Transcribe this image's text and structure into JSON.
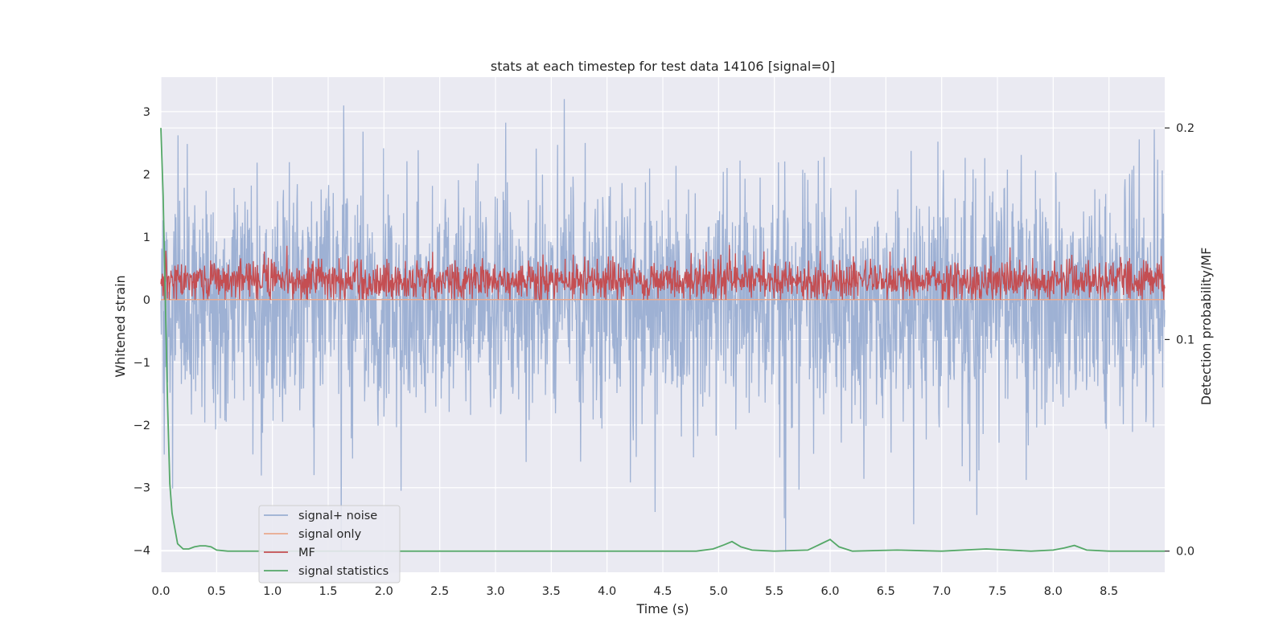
{
  "chart_data": {
    "type": "line",
    "title": "stats at each timestep for test data 14106 [signal=0]",
    "xlabel": "Time (s)",
    "ylabel_left": "Whitened strain",
    "ylabel_right": "Detection probability/MF",
    "xlim": [
      0.0,
      9.0
    ],
    "ylim_left": [
      -4.35,
      3.55
    ],
    "ylim_right": [
      -0.01,
      0.224
    ],
    "x_ticks": [
      "0.0",
      "0.5",
      "1.0",
      "1.5",
      "2.0",
      "2.5",
      "3.0",
      "3.5",
      "4.0",
      "4.5",
      "5.0",
      "5.5",
      "6.0",
      "6.5",
      "7.0",
      "7.5",
      "8.0",
      "8.5"
    ],
    "y_ticks_left": [
      "3",
      "2",
      "1",
      "0",
      "−1",
      "−2",
      "−3",
      "−4"
    ],
    "y_ticks_right": [
      "0.2",
      "0.1",
      "0.0"
    ],
    "grid": true,
    "legend_position": "lower-left",
    "series": [
      {
        "name": "signal+ noise",
        "color": "#9aaed2",
        "axis": "left",
        "description_values": {
          "typical_range": [
            -2.0,
            2.0
          ],
          "peaks_max": 3.2,
          "peaks_min": -4.0
        }
      },
      {
        "name": "signal only",
        "color": "#e9a98e",
        "axis": "left",
        "constant_value": 0.0
      },
      {
        "name": "MF",
        "color": "#c44e52",
        "axis": "left",
        "description_values": {
          "typical_range": [
            0.0,
            0.75
          ],
          "peak_max": 1.0
        }
      },
      {
        "name": "signal statistics",
        "color": "#55a868",
        "axis": "right",
        "x": [
          0.0,
          0.02,
          0.04,
          0.06,
          0.08,
          0.1,
          0.15,
          0.2,
          0.25,
          0.3,
          0.35,
          0.4,
          0.45,
          0.5,
          0.6,
          1.0,
          2.0,
          3.0,
          4.0,
          4.8,
          4.95,
          5.05,
          5.12,
          5.2,
          5.3,
          5.5,
          5.8,
          5.92,
          6.0,
          6.08,
          6.2,
          6.6,
          7.0,
          7.4,
          7.8,
          8.0,
          8.1,
          8.19,
          8.3,
          8.5,
          9.0
        ],
        "y": [
          0.2,
          0.168,
          0.12,
          0.07,
          0.032,
          0.018,
          0.0035,
          0.001,
          0.001,
          0.002,
          0.0025,
          0.0025,
          0.002,
          0.0005,
          0.0,
          0.0,
          0.0,
          0.0,
          0.0,
          0.0,
          0.001,
          0.003,
          0.0045,
          0.002,
          0.0005,
          0.0,
          0.0005,
          0.0035,
          0.0055,
          0.002,
          0.0,
          0.0005,
          0.0,
          0.001,
          0.0,
          0.0005,
          0.0015,
          0.0027,
          0.0005,
          0.0,
          0.0
        ]
      }
    ]
  }
}
